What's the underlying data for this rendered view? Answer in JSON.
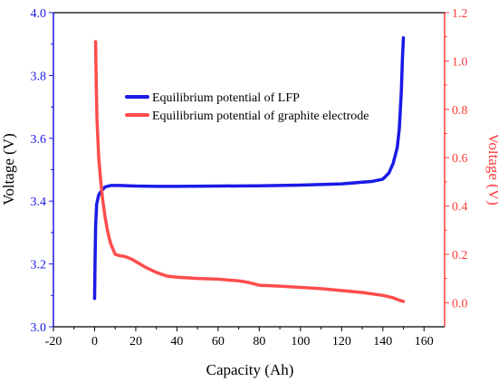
{
  "chart_data": {
    "type": "line",
    "xlabel": "Capacity (Ah)",
    "ylabel_left": "Voltage (V)",
    "ylabel_right": "Voltage (V)",
    "xlim": [
      -20,
      170
    ],
    "ylim_left": [
      3.0,
      4.0
    ],
    "ylim_right": [
      -0.1,
      1.2
    ],
    "x_ticks": [
      -20,
      0,
      20,
      40,
      60,
      80,
      100,
      120,
      140,
      160
    ],
    "y_left_ticks": [
      3.0,
      3.2,
      3.4,
      3.6,
      3.8,
      4.0
    ],
    "y_right_ticks": [
      0.0,
      0.2,
      0.4,
      0.6,
      0.8,
      1.0,
      1.2
    ],
    "grid": false,
    "legend_position": "upper-center",
    "colors": {
      "left_axis": "#1a1ae6",
      "right_axis": "#ff3b3b",
      "lfp": "#1a1ae6",
      "graphite": "#ff4d4d"
    },
    "series": [
      {
        "name": "Equilibrium potential of LFP",
        "axis": "left",
        "color": "#1a1ae6",
        "x": [
          0,
          0.2,
          0.5,
          1,
          2,
          3,
          5,
          8,
          12,
          20,
          30,
          40,
          60,
          80,
          100,
          120,
          135,
          140,
          143,
          145,
          147,
          148,
          149,
          149.5,
          150
        ],
        "y": [
          3.09,
          3.2,
          3.32,
          3.39,
          3.42,
          3.43,
          3.445,
          3.45,
          3.45,
          3.448,
          3.447,
          3.447,
          3.448,
          3.449,
          3.451,
          3.455,
          3.463,
          3.47,
          3.49,
          3.52,
          3.57,
          3.63,
          3.75,
          3.85,
          3.92
        ]
      },
      {
        "name": "Equilibrium potential of graphite electrode",
        "axis": "right",
        "color": "#ff4d4d",
        "x": [
          0.5,
          0.8,
          1.2,
          2,
          3,
          4,
          5,
          6,
          7,
          8,
          9,
          10,
          12,
          15,
          18,
          20,
          25,
          30,
          35,
          40,
          50,
          60,
          70,
          75,
          80,
          85,
          90,
          100,
          110,
          120,
          130,
          140,
          145,
          148,
          150
        ],
        "y": [
          1.08,
          0.9,
          0.75,
          0.6,
          0.5,
          0.42,
          0.36,
          0.31,
          0.27,
          0.24,
          0.22,
          0.2,
          0.195,
          0.19,
          0.18,
          0.17,
          0.145,
          0.125,
          0.11,
          0.105,
          0.1,
          0.097,
          0.09,
          0.083,
          0.072,
          0.07,
          0.068,
          0.063,
          0.058,
          0.05,
          0.042,
          0.03,
          0.02,
          0.01,
          0.005
        ]
      }
    ]
  }
}
